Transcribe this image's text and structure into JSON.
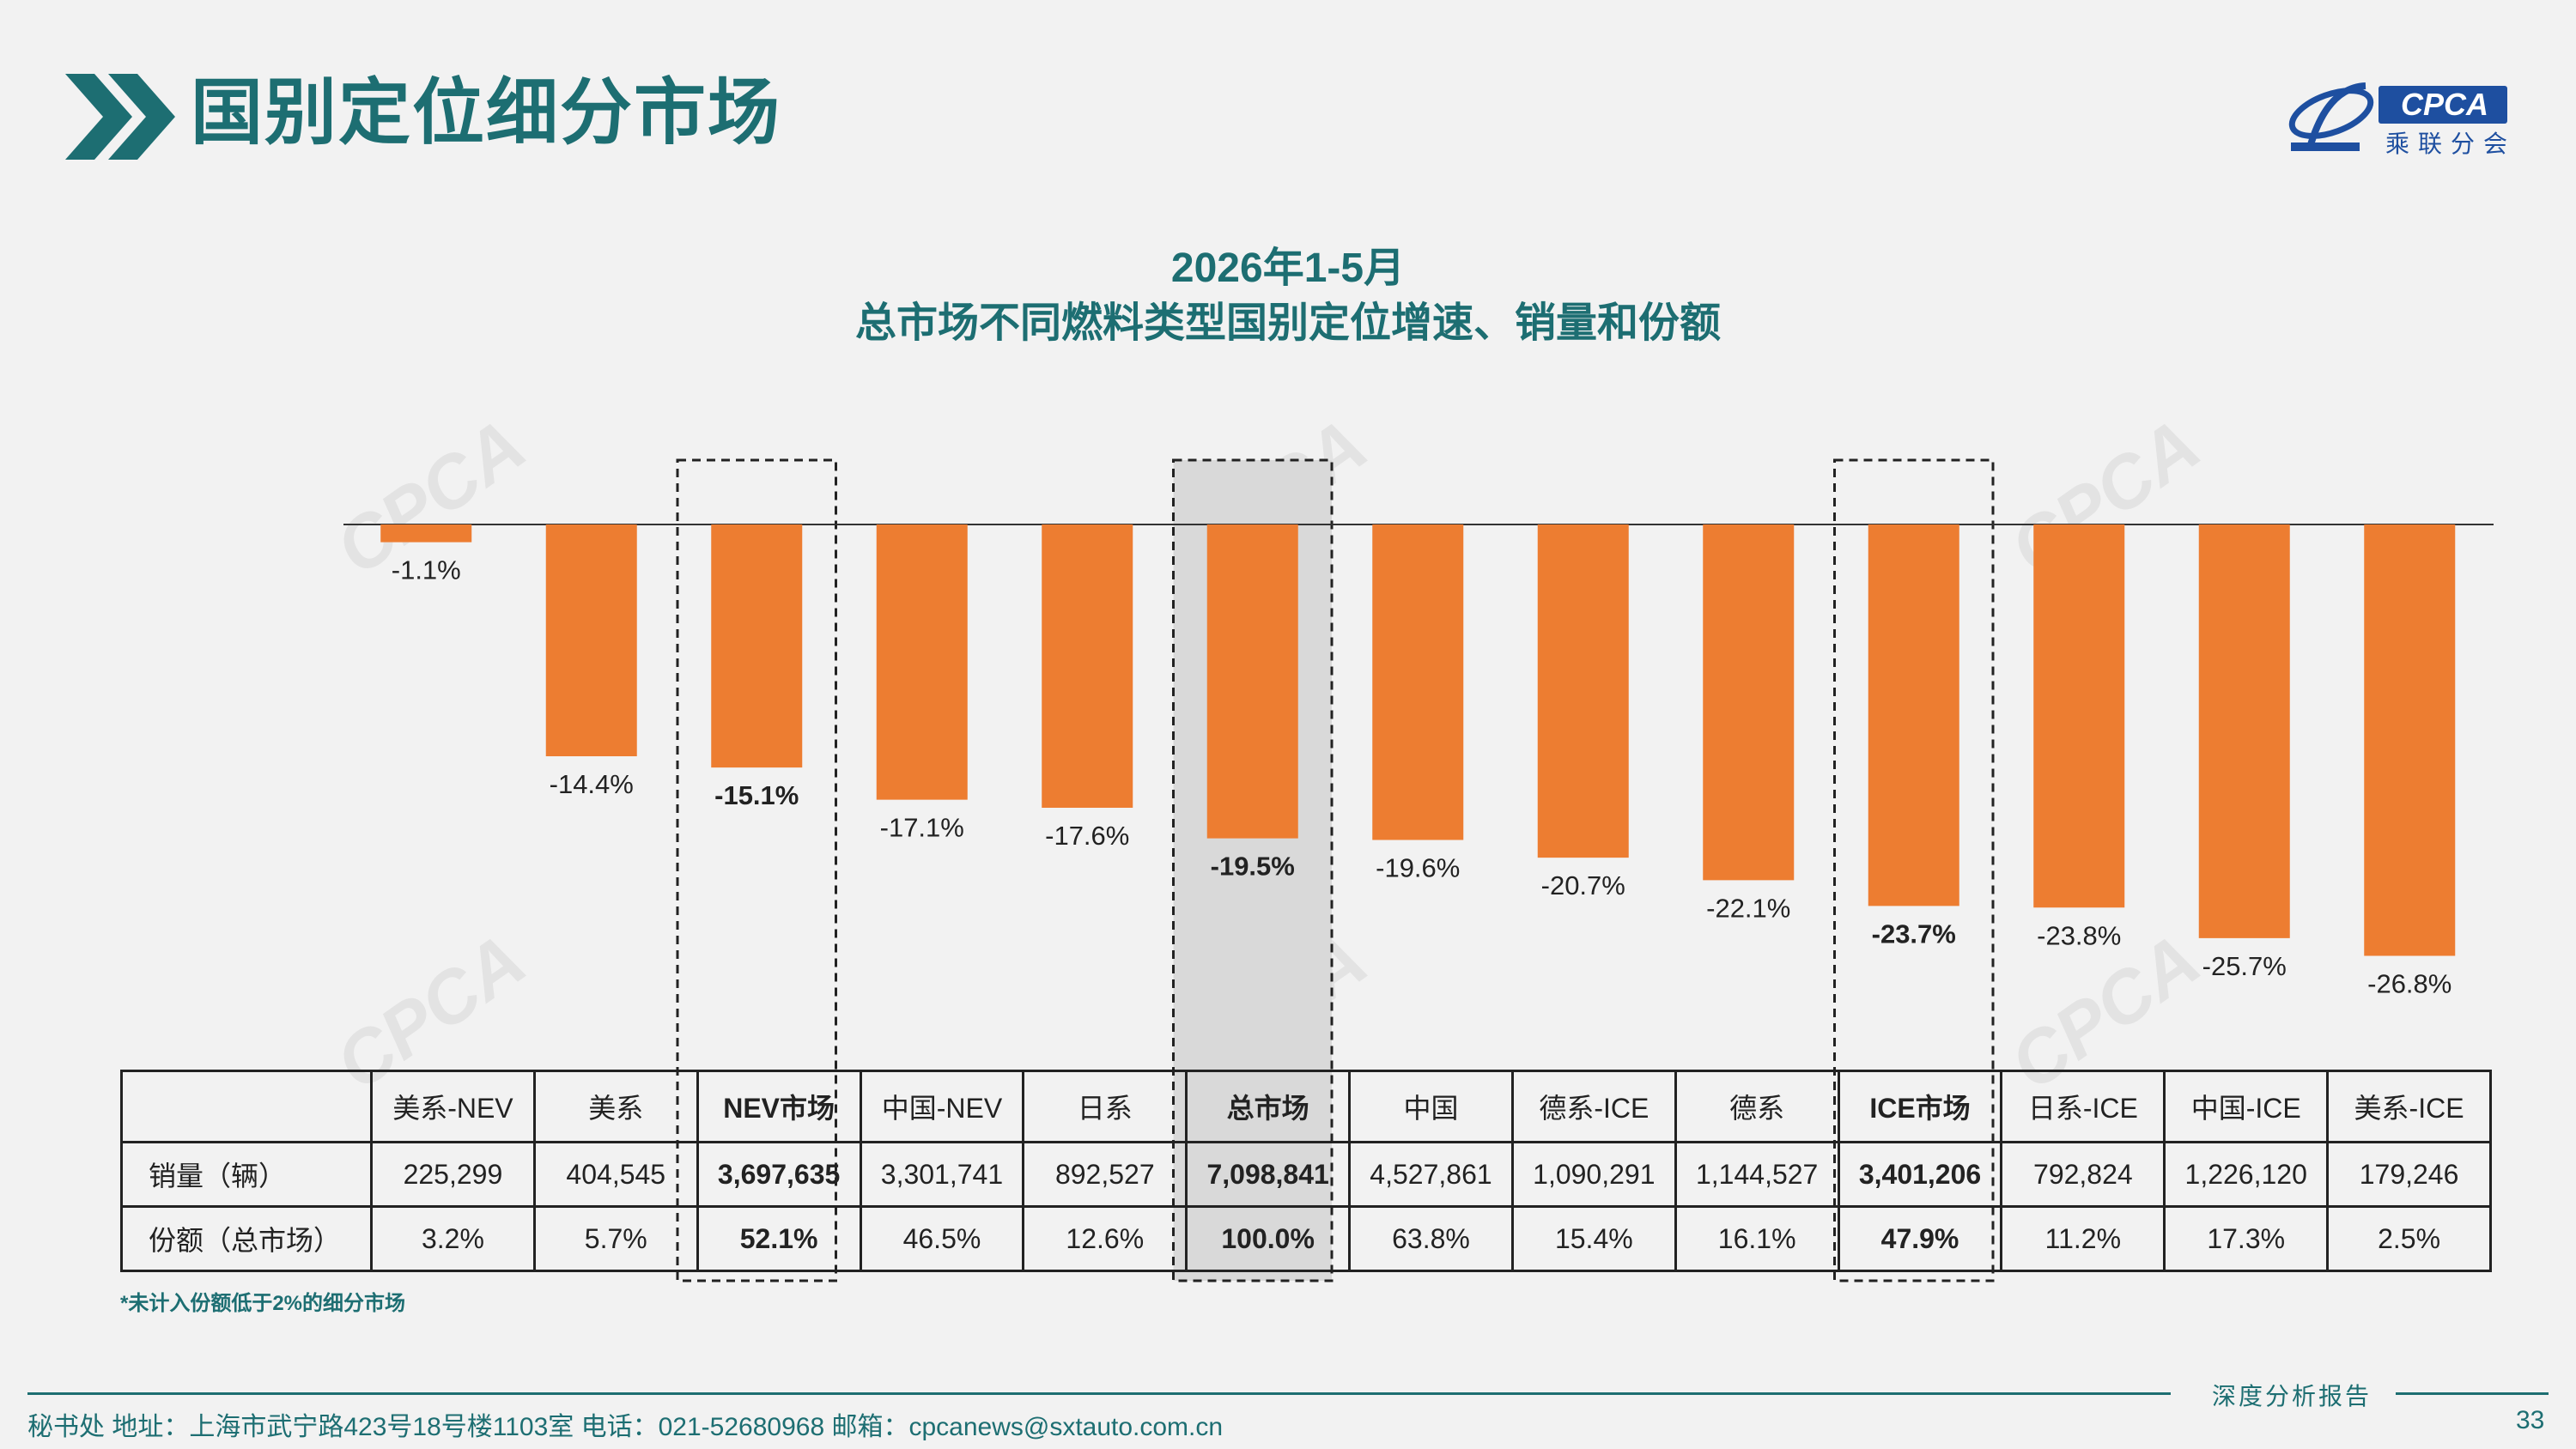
{
  "header": {
    "title": "国别定位细分市场",
    "logo_text": "CPCA",
    "logo_sub": "乘联分会",
    "accent": "#1d6e72"
  },
  "chart_data": {
    "type": "bar",
    "title": "2026年1-5月",
    "subtitle": "总市场不同燃料类型国别定位增速、销量和份额",
    "categories": [
      "美系-NEV",
      "美系",
      "NEV市场",
      "中国-NEV",
      "日系",
      "总市场",
      "中国",
      "德系-ICE",
      "德系",
      "ICE市场",
      "日系-ICE",
      "中国-ICE",
      "美系-ICE"
    ],
    "values": [
      -1.1,
      -14.4,
      -15.1,
      -17.1,
      -17.6,
      -19.5,
      -19.6,
      -20.7,
      -22.1,
      -23.7,
      -23.8,
      -25.7,
      -26.8
    ],
    "labels": [
      "-1.1%",
      "-14.4%",
      "-15.1%",
      "-17.1%",
      "-17.6%",
      "-19.5%",
      "-19.6%",
      "-20.7%",
      "-22.1%",
      "-23.7%",
      "-23.8%",
      "-25.7%",
      "-26.8%"
    ],
    "highlighted": [
      "NEV市场",
      "总市场",
      "ICE市场"
    ],
    "shaded": [
      "总市场"
    ],
    "bar_color": "#ed7d31",
    "ylim": [
      -30,
      0
    ],
    "grid": false
  },
  "table": {
    "rows": [
      {
        "label": "销量（辆）",
        "cells": [
          "225,299",
          "404,545",
          "3,697,635",
          "3,301,741",
          "892,527",
          "7,098,841",
          "4,527,861",
          "1,090,291",
          "1,144,527",
          "3,401,206",
          "792,824",
          "1,226,120",
          "179,246"
        ]
      },
      {
        "label": "份额（总市场）",
        "cells": [
          "3.2%",
          "5.7%",
          "52.1%",
          "46.5%",
          "12.6%",
          "100.0%",
          "63.8%",
          "15.4%",
          "16.1%",
          "47.9%",
          "11.2%",
          "17.3%",
          "2.5%"
        ]
      }
    ]
  },
  "footnote": "*未计入份额低于2%的细分市场",
  "footer": {
    "tag": "深度分析报告",
    "info": "秘书处   地址：上海市武宁路423号18号楼1103室  电话：021-52680968    邮箱：cpcanews@sxtauto.com.cn",
    "page": "33"
  }
}
